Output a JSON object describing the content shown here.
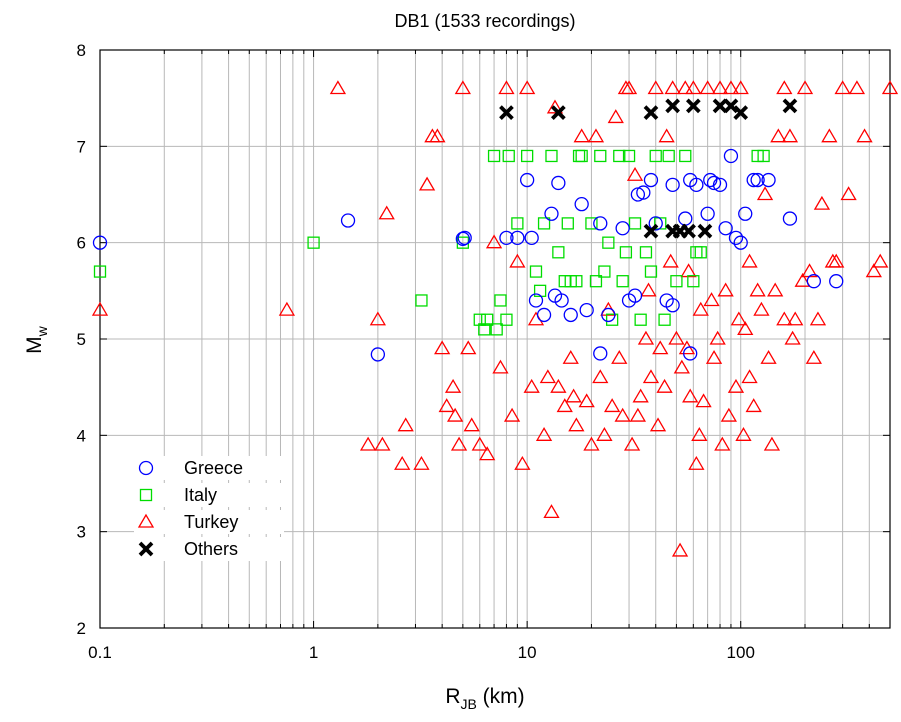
{
  "chart_data": {
    "type": "scatter",
    "title": "DB1 (1533 recordings)",
    "xlabel": {
      "main": "R",
      "sub": "JB",
      "rest": " (km)"
    },
    "ylabel": {
      "main": "M",
      "sub": "w"
    },
    "xscale": "log",
    "xlim": [
      0.1,
      500
    ],
    "ylim": [
      2,
      8
    ],
    "x_tick_labels": [
      {
        "value": 0.1,
        "label": "0.1"
      },
      {
        "value": 1,
        "label": "1"
      },
      {
        "value": 10,
        "label": "10"
      },
      {
        "value": 100,
        "label": "100"
      }
    ],
    "y_tick_labels": [
      {
        "value": 2,
        "label": "2"
      },
      {
        "value": 3,
        "label": "3"
      },
      {
        "value": 4,
        "label": "4"
      },
      {
        "value": 5,
        "label": "5"
      },
      {
        "value": 6,
        "label": "6"
      },
      {
        "value": 7,
        "label": "7"
      },
      {
        "value": 8,
        "label": "8"
      }
    ],
    "grid": true,
    "legend_position": "bottom-left",
    "series": [
      {
        "name": "Greece",
        "marker": "circle",
        "color": "#0000ff",
        "points": [
          [
            0.1,
            6.0
          ],
          [
            1.45,
            6.23
          ],
          [
            2.0,
            4.84
          ],
          [
            5.0,
            6.04
          ],
          [
            5.1,
            6.05
          ],
          [
            8.0,
            6.05
          ],
          [
            9.0,
            6.05
          ],
          [
            10.0,
            6.65
          ],
          [
            10.5,
            6.05
          ],
          [
            11.0,
            5.4
          ],
          [
            12.0,
            5.25
          ],
          [
            13.0,
            6.3
          ],
          [
            13.5,
            5.45
          ],
          [
            14.0,
            6.62
          ],
          [
            14.5,
            5.4
          ],
          [
            16.0,
            5.25
          ],
          [
            18.0,
            6.4
          ],
          [
            19.0,
            5.3
          ],
          [
            22.0,
            6.2
          ],
          [
            24.0,
            5.25
          ],
          [
            28.0,
            6.15
          ],
          [
            30.0,
            5.4
          ],
          [
            33.0,
            6.5
          ],
          [
            35.0,
            6.52
          ],
          [
            38.0,
            6.65
          ],
          [
            40.0,
            6.2
          ],
          [
            45.0,
            5.4
          ],
          [
            48.0,
            6.6
          ],
          [
            55.0,
            6.25
          ],
          [
            58.0,
            6.65
          ],
          [
            62.0,
            6.6
          ],
          [
            70.0,
            6.3
          ],
          [
            72.0,
            6.65
          ],
          [
            75.0,
            6.62
          ],
          [
            80.0,
            6.6
          ],
          [
            85.0,
            6.15
          ],
          [
            90.0,
            6.9
          ],
          [
            95.0,
            6.05
          ],
          [
            105.0,
            6.3
          ],
          [
            115.0,
            6.65
          ],
          [
            120.0,
            6.65
          ],
          [
            135.0,
            6.65
          ],
          [
            170.0,
            6.25
          ],
          [
            220.0,
            5.6
          ],
          [
            280.0,
            5.6
          ],
          [
            58.0,
            4.85
          ],
          [
            22.0,
            4.85
          ],
          [
            32.0,
            5.45
          ],
          [
            48.0,
            5.35
          ],
          [
            100.0,
            6.0
          ]
        ]
      },
      {
        "name": "Italy",
        "marker": "square",
        "color": "#00dd00",
        "points": [
          [
            0.1,
            5.7
          ],
          [
            1.0,
            6.0
          ],
          [
            3.2,
            5.4
          ],
          [
            5.0,
            6.0
          ],
          [
            6.0,
            5.2
          ],
          [
            6.3,
            5.1
          ],
          [
            6.5,
            5.2
          ],
          [
            7.0,
            6.9
          ],
          [
            7.2,
            5.1
          ],
          [
            7.5,
            5.4
          ],
          [
            8.0,
            5.2
          ],
          [
            8.2,
            6.9
          ],
          [
            9.0,
            6.2
          ],
          [
            10.0,
            6.9
          ],
          [
            11.0,
            5.7
          ],
          [
            11.5,
            5.5
          ],
          [
            12.0,
            6.2
          ],
          [
            13.0,
            6.9
          ],
          [
            14.0,
            5.9
          ],
          [
            15.0,
            5.6
          ],
          [
            15.5,
            6.2
          ],
          [
            16.0,
            5.6
          ],
          [
            17.0,
            5.6
          ],
          [
            17.5,
            6.9
          ],
          [
            20.0,
            6.2
          ],
          [
            21.0,
            5.6
          ],
          [
            22.0,
            6.9
          ],
          [
            23.0,
            5.7
          ],
          [
            25.0,
            5.2
          ],
          [
            27.0,
            6.9
          ],
          [
            29.0,
            5.9
          ],
          [
            30.0,
            6.9
          ],
          [
            32.0,
            6.2
          ],
          [
            36.0,
            5.9
          ],
          [
            40.0,
            6.9
          ],
          [
            42.0,
            6.2
          ],
          [
            46.0,
            6.9
          ],
          [
            50.0,
            5.6
          ],
          [
            55.0,
            6.9
          ],
          [
            60.0,
            5.6
          ],
          [
            65.0,
            5.9
          ],
          [
            120.0,
            6.9
          ],
          [
            128.0,
            6.9
          ],
          [
            18.0,
            6.9
          ],
          [
            24.0,
            6.0
          ],
          [
            34.0,
            5.2
          ],
          [
            44.0,
            5.2
          ],
          [
            28.0,
            5.6
          ],
          [
            38.0,
            5.7
          ],
          [
            62.0,
            5.9
          ]
        ]
      },
      {
        "name": "Turkey",
        "marker": "triangle",
        "color": "#ff0000",
        "points": [
          [
            0.1,
            5.3
          ],
          [
            0.75,
            5.3
          ],
          [
            1.3,
            7.6
          ],
          [
            1.8,
            3.9
          ],
          [
            2.0,
            5.2
          ],
          [
            2.1,
            3.9
          ],
          [
            2.2,
            6.3
          ],
          [
            2.6,
            3.7
          ],
          [
            2.7,
            4.1
          ],
          [
            3.2,
            3.7
          ],
          [
            3.4,
            6.6
          ],
          [
            3.6,
            7.1
          ],
          [
            3.8,
            7.1
          ],
          [
            4.0,
            4.9
          ],
          [
            4.2,
            4.3
          ],
          [
            4.5,
            4.5
          ],
          [
            4.6,
            4.2
          ],
          [
            4.8,
            3.9
          ],
          [
            5.0,
            7.6
          ],
          [
            5.3,
            4.9
          ],
          [
            5.5,
            4.1
          ],
          [
            6.0,
            3.9
          ],
          [
            6.5,
            3.8
          ],
          [
            7.0,
            6.0
          ],
          [
            7.5,
            4.7
          ],
          [
            8.0,
            7.6
          ],
          [
            8.5,
            4.2
          ],
          [
            9.0,
            5.8
          ],
          [
            9.5,
            3.7
          ],
          [
            10.0,
            7.6
          ],
          [
            10.5,
            4.5
          ],
          [
            11.0,
            5.2
          ],
          [
            12.0,
            4.0
          ],
          [
            13.0,
            3.2
          ],
          [
            13.5,
            7.4
          ],
          [
            15.0,
            4.3
          ],
          [
            16.0,
            4.8
          ],
          [
            17.0,
            4.1
          ],
          [
            18.0,
            7.1
          ],
          [
            20.0,
            3.9
          ],
          [
            21.0,
            7.1
          ],
          [
            22.0,
            4.6
          ],
          [
            24.0,
            5.3
          ],
          [
            26.0,
            7.3
          ],
          [
            28.0,
            4.2
          ],
          [
            29.0,
            7.6
          ],
          [
            30.0,
            7.6
          ],
          [
            32.0,
            6.7
          ],
          [
            34.0,
            4.4
          ],
          [
            36.0,
            5.0
          ],
          [
            38.0,
            4.6
          ],
          [
            40.0,
            7.6
          ],
          [
            42.0,
            4.9
          ],
          [
            45.0,
            7.1
          ],
          [
            48.0,
            7.6
          ],
          [
            50.0,
            5.0
          ],
          [
            52.0,
            2.8
          ],
          [
            55.0,
            7.6
          ],
          [
            58.0,
            4.4
          ],
          [
            60.0,
            7.6
          ],
          [
            62.0,
            3.7
          ],
          [
            65.0,
            5.3
          ],
          [
            70.0,
            7.6
          ],
          [
            75.0,
            4.8
          ],
          [
            80.0,
            7.6
          ],
          [
            85.0,
            5.5
          ],
          [
            90.0,
            7.6
          ],
          [
            95.0,
            4.5
          ],
          [
            100.0,
            7.6
          ],
          [
            105.0,
            5.1
          ],
          [
            110.0,
            5.8
          ],
          [
            120.0,
            5.5
          ],
          [
            130.0,
            6.5
          ],
          [
            140.0,
            3.9
          ],
          [
            150.0,
            7.1
          ],
          [
            160.0,
            7.6
          ],
          [
            170.0,
            7.1
          ],
          [
            180.0,
            5.2
          ],
          [
            200.0,
            7.6
          ],
          [
            220.0,
            4.8
          ],
          [
            240.0,
            6.4
          ],
          [
            260.0,
            7.1
          ],
          [
            280.0,
            5.8
          ],
          [
            300.0,
            7.6
          ],
          [
            320.0,
            6.5
          ],
          [
            350.0,
            7.6
          ],
          [
            380.0,
            7.1
          ],
          [
            420.0,
            5.7
          ],
          [
            450.0,
            5.8
          ],
          [
            500.0,
            7.6
          ],
          [
            14.0,
            4.5
          ],
          [
            19.0,
            4.35
          ],
          [
            25.0,
            4.3
          ],
          [
            33.0,
            4.2
          ],
          [
            44.0,
            4.5
          ],
          [
            56.0,
            4.9
          ],
          [
            67.0,
            4.35
          ],
          [
            78.0,
            5.0
          ],
          [
            88.0,
            4.2
          ],
          [
            110.0,
            4.6
          ],
          [
            125.0,
            5.3
          ],
          [
            145.0,
            5.5
          ],
          [
            175.0,
            5.0
          ],
          [
            195.0,
            5.6
          ],
          [
            230.0,
            5.2
          ],
          [
            16.5,
            4.4
          ],
          [
            23.0,
            4.0
          ],
          [
            31.0,
            3.9
          ],
          [
            41.0,
            4.1
          ],
          [
            53.0,
            4.7
          ],
          [
            64.0,
            4.0
          ],
          [
            73.0,
            5.4
          ],
          [
            98.0,
            5.2
          ],
          [
            115.0,
            4.3
          ],
          [
            135.0,
            4.8
          ],
          [
            12.5,
            4.6
          ],
          [
            27.0,
            4.8
          ],
          [
            37.0,
            5.5
          ],
          [
            47.0,
            5.8
          ],
          [
            57.0,
            5.7
          ],
          [
            82.0,
            3.9
          ],
          [
            103.0,
            4.0
          ],
          [
            160.0,
            5.2
          ],
          [
            210.0,
            5.7
          ],
          [
            270.0,
            5.8
          ]
        ]
      },
      {
        "name": "Others",
        "marker": "cross",
        "color": "#000000",
        "points": [
          [
            8.0,
            7.35
          ],
          [
            14.0,
            7.35
          ],
          [
            38.0,
            7.35
          ],
          [
            48.0,
            7.42
          ],
          [
            60.0,
            7.42
          ],
          [
            80.0,
            7.42
          ],
          [
            90.0,
            7.42
          ],
          [
            100.0,
            7.35
          ],
          [
            170.0,
            7.42
          ],
          [
            38.0,
            6.12
          ],
          [
            48.0,
            6.12
          ],
          [
            52.0,
            6.12
          ],
          [
            57.0,
            6.12
          ],
          [
            68.0,
            6.12
          ]
        ]
      }
    ]
  }
}
